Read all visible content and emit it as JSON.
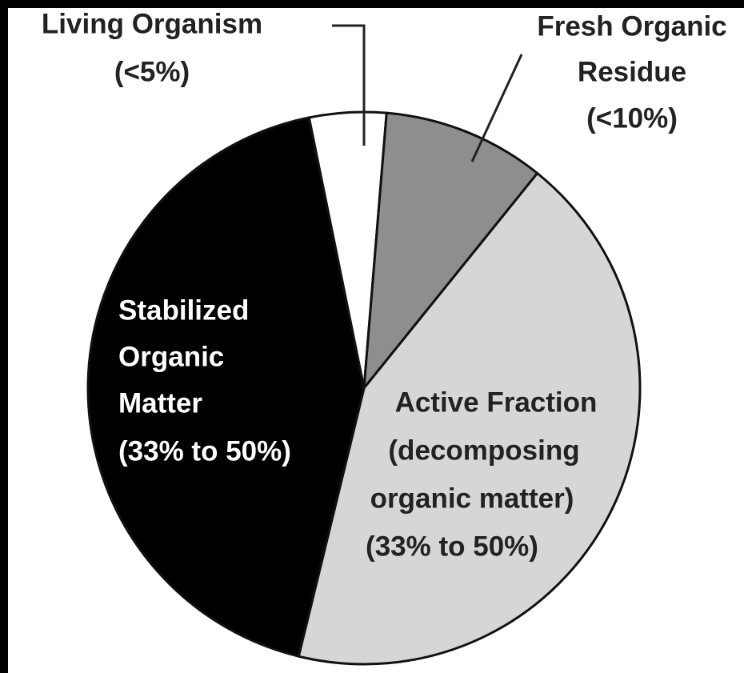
{
  "chart_data": {
    "type": "pie",
    "categories": [
      [
        "Living Organism"
      ],
      [
        "Fresh Organic",
        "Residue"
      ],
      [
        "Active Fraction",
        "(decomposing",
        "organic matter)"
      ],
      [
        "Stabilized",
        "Organic",
        "Matter"
      ]
    ],
    "values": [
      4.5,
      9.5,
      43,
      43
    ],
    "value_labels": [
      "(<5%)",
      "(<10%)",
      "(33% to 50%)",
      "(33% to 50%)"
    ],
    "colors": [
      "#ffffff",
      "#8e8e8e",
      "#d6d6d6",
      "#000000"
    ]
  }
}
